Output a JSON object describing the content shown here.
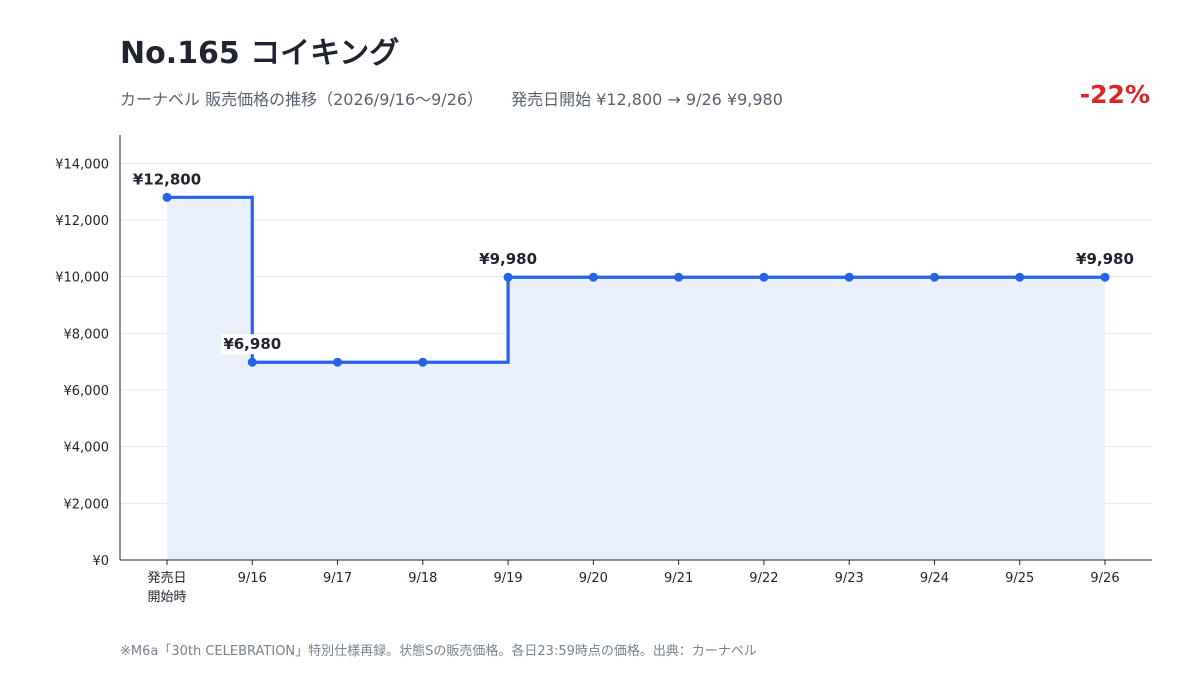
{
  "header": {
    "title": "No.165 コイキング",
    "subtitle_left": "カーナベル 販売価格の推移（2026/9/16〜9/26）",
    "subtitle_right": "発売日開始 ¥12,800 → 9/26 ¥9,980",
    "change": "-22%"
  },
  "footnote": "※M6a「30th CELEBRATION」特別仕様再録。状態Sの販売価格。各日23:59時点の価格。出典：カーナベル",
  "colors": {
    "line": "#2563eb",
    "fill": "#eaf0fb",
    "change": "#dc2626"
  },
  "chart_data": {
    "type": "line",
    "step": "after",
    "categories": [
      "発売日\n開始時",
      "9/16",
      "9/17",
      "9/18",
      "9/19",
      "9/20",
      "9/21",
      "9/22",
      "9/23",
      "9/24",
      "9/25",
      "9/26"
    ],
    "values": [
      12800,
      6980,
      6980,
      6980,
      9980,
      9980,
      9980,
      9980,
      9980,
      9980,
      9980,
      9980
    ],
    "data_labels": [
      {
        "index": 0,
        "text": "¥12,800"
      },
      {
        "index": 1,
        "text": "¥6,980"
      },
      {
        "index": 4,
        "text": "¥9,980"
      },
      {
        "index": 11,
        "text": "¥9,980"
      }
    ],
    "ylim": [
      0,
      15000
    ],
    "yticks": [
      0,
      2000,
      4000,
      6000,
      8000,
      10000,
      12000,
      14000
    ],
    "ytick_labels": [
      "¥0",
      "¥2,000",
      "¥4,000",
      "¥6,000",
      "¥8,000",
      "¥10,000",
      "¥12,000",
      "¥14,000"
    ],
    "grid": true,
    "title": "",
    "xlabel": "",
    "ylabel": ""
  }
}
